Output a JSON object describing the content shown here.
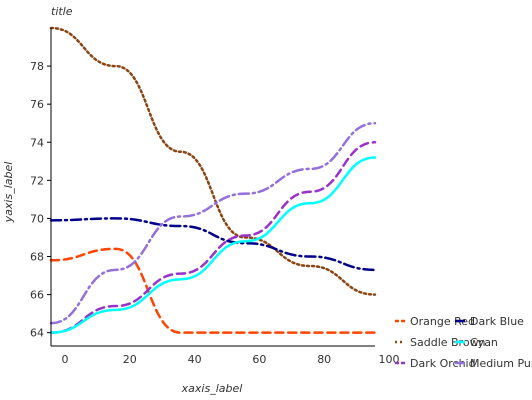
{
  "chart_data": {
    "type": "line",
    "title": "title",
    "xlabel": "xaxis_label",
    "ylabel": "yaxis_label",
    "xlim": [
      0,
      100
    ],
    "ylim": [
      63.3,
      80.0
    ],
    "x_ticks": [
      0,
      20,
      40,
      60,
      80,
      100
    ],
    "y_ticks": [
      64,
      66,
      68,
      70,
      72,
      74,
      76,
      78
    ],
    "grid": false,
    "legend_position": "right",
    "series": [
      {
        "name": "Orange Red",
        "color": "#ff4500",
        "style": "dashed",
        "x": [
          0,
          20,
          40,
          60,
          80,
          100
        ],
        "y": [
          67.8,
          68.4,
          64.0,
          64.0,
          64.0,
          64.0
        ]
      },
      {
        "name": "Saddle Brown",
        "color": "#8b4513",
        "style": "dotted",
        "x": [
          0,
          20,
          40,
          60,
          80,
          100
        ],
        "y": [
          80.0,
          78.0,
          73.5,
          69.0,
          67.5,
          66.0
        ]
      },
      {
        "name": "Dark Orchid",
        "color": "#9932cc",
        "style": "dashed",
        "x": [
          0,
          20,
          40,
          60,
          80,
          100
        ],
        "y": [
          64.0,
          65.4,
          67.1,
          69.1,
          71.4,
          74.0
        ]
      },
      {
        "name": "Dark Blue",
        "color": "#00008b",
        "style": "dashdot",
        "x": [
          0,
          20,
          40,
          60,
          80,
          100
        ],
        "y": [
          69.9,
          70.0,
          69.6,
          68.7,
          68.0,
          67.3
        ]
      },
      {
        "name": "Cyan",
        "color": "#00ffff",
        "style": "solid",
        "x": [
          0,
          20,
          40,
          60,
          80,
          100
        ],
        "y": [
          64.0,
          65.2,
          66.8,
          68.8,
          70.8,
          73.2
        ]
      },
      {
        "name": "Medium Purple",
        "color": "#9370db",
        "style": "dashdot",
        "x": [
          0,
          20,
          40,
          60,
          80,
          100
        ],
        "y": [
          64.5,
          67.3,
          70.1,
          71.3,
          72.6,
          75.0
        ]
      }
    ]
  }
}
